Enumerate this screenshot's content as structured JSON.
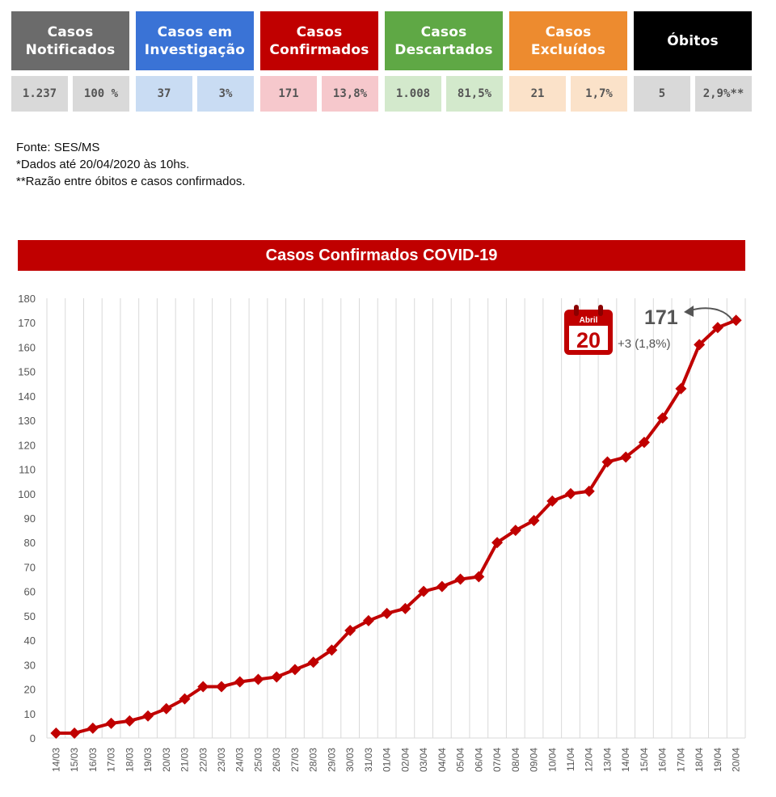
{
  "summary": [
    {
      "title": "Casos\nNotificados",
      "bg": "#6b6b6b",
      "cell_bg": "#d9d9d9",
      "values": [
        "1.237",
        "100 %"
      ]
    },
    {
      "title": "Casos em\nInvestigação",
      "bg": "#3a73d6",
      "cell_bg": "#c9dcf3",
      "values": [
        "37",
        "3%"
      ]
    },
    {
      "title": "Casos\nConfirmados",
      "bg": "#c00000",
      "cell_bg": "#f6c8cc",
      "values": [
        "171",
        "13,8%"
      ]
    },
    {
      "title": "Casos\nDescartados",
      "bg": "#5fa845",
      "cell_bg": "#d3e9cc",
      "values": [
        "1.008",
        "81,5%"
      ]
    },
    {
      "title": "Casos\nExcluídos",
      "bg": "#ed8b2f",
      "cell_bg": "#fbe2c9",
      "values": [
        "21",
        "1,7%"
      ]
    },
    {
      "title": "Óbitos",
      "bg": "#000000",
      "cell_bg": "#d9d9d9",
      "values": [
        "5",
        "2,9%**"
      ]
    }
  ],
  "notes": [
    "Fonte: SES/MS",
    "*Dados até 20/04/2020 às 10hs.",
    "**Razão entre óbitos e casos confirmados."
  ],
  "chart_title": "Casos Confirmados COVID-19",
  "annotation": {
    "calendar_month": "Abril",
    "calendar_day": "20",
    "last_value": "171",
    "change": "+3 (1,8%)"
  },
  "colors": {
    "line": "#c00000",
    "grid": "#d9d9d9",
    "calendar": "#c00000"
  },
  "chart_data": {
    "type": "line",
    "title": "Casos Confirmados COVID-19",
    "xlabel": "",
    "ylabel": "",
    "ylim": [
      0,
      180
    ],
    "yticks": [
      0,
      10,
      20,
      30,
      40,
      50,
      60,
      70,
      80,
      90,
      100,
      110,
      120,
      130,
      140,
      150,
      160,
      170,
      180
    ],
    "grid": "vertical",
    "categories": [
      "14/03",
      "15/03",
      "16/03",
      "17/03",
      "18/03",
      "19/03",
      "20/03",
      "21/03",
      "22/03",
      "23/03",
      "24/03",
      "25/03",
      "26/03",
      "27/03",
      "28/03",
      "29/03",
      "30/03",
      "31/03",
      "01/04",
      "02/04",
      "03/04",
      "04/04",
      "05/04",
      "06/04",
      "07/04",
      "08/04",
      "09/04",
      "10/04",
      "11/04",
      "12/04",
      "13/04",
      "14/04",
      "15/04",
      "16/04",
      "17/04",
      "18/04",
      "19/04",
      "20/04"
    ],
    "series": [
      {
        "values": [
          2,
          2,
          4,
          6,
          7,
          9,
          12,
          16,
          21,
          21,
          23,
          24,
          25,
          28,
          31,
          36,
          44,
          48,
          51,
          53,
          60,
          62,
          65,
          66,
          80,
          85,
          89,
          97,
          100,
          101,
          113,
          115,
          121,
          131,
          143,
          161,
          168,
          171
        ]
      }
    ]
  }
}
